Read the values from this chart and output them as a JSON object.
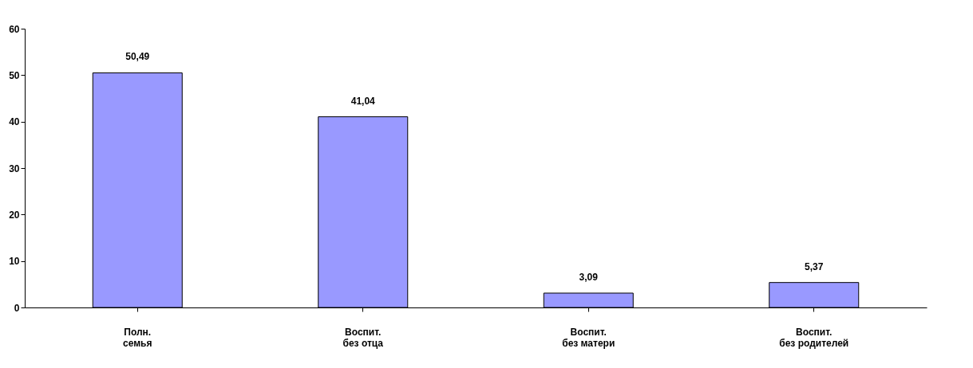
{
  "chart_data": {
    "type": "bar",
    "categories": [
      "Полн. семья",
      "Воспит. без отца",
      "Воспит. без матери",
      "Воспит. без родителей"
    ],
    "values": [
      50.49,
      41.04,
      3.09,
      5.37
    ],
    "value_labels": [
      "50,49",
      "41,04",
      "3,09",
      "5,37"
    ],
    "color": "#9999ff",
    "ylim": [
      0,
      60
    ],
    "yticks": [
      0,
      10,
      20,
      30,
      40,
      50,
      60
    ],
    "grid": false
  }
}
